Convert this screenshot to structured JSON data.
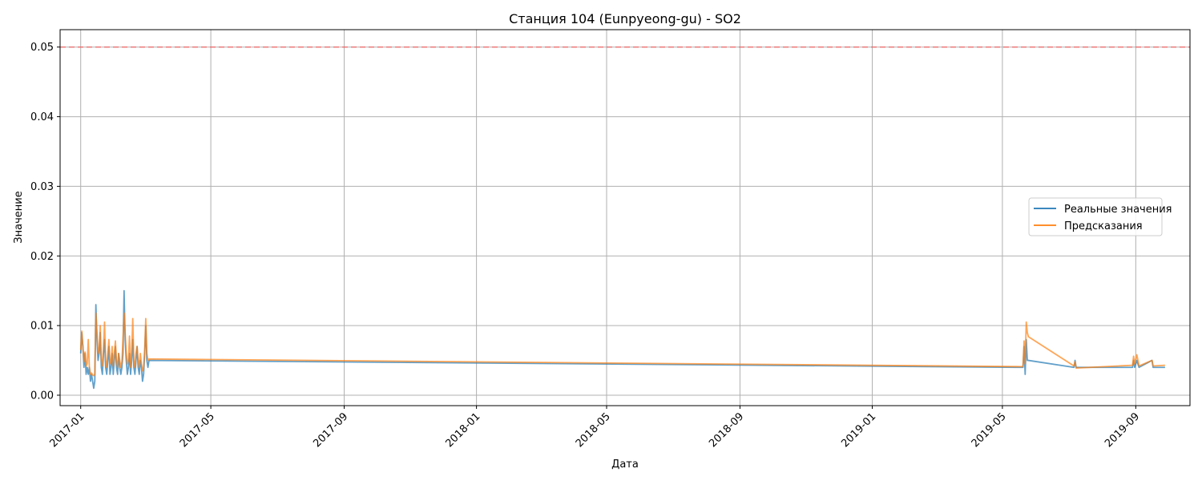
{
  "chart_data": {
    "type": "line",
    "title": "Станция 104 (Eunpyeong-gu) - SO2",
    "xlabel": "Дата",
    "ylabel": "Значение",
    "xlim": [
      "2016-12-13",
      "2019-10-21"
    ],
    "ylim": [
      -0.0015,
      0.0525
    ],
    "x_ticks": [
      "2017-01",
      "2017-05",
      "2017-09",
      "2018-01",
      "2018-05",
      "2018-09",
      "2019-01",
      "2019-05",
      "2019-09"
    ],
    "y_ticks": [
      "0.00",
      "0.01",
      "0.02",
      "0.03",
      "0.04",
      "0.05"
    ],
    "y_tick_values": [
      0.0,
      0.01,
      0.02,
      0.03,
      0.04,
      0.05
    ],
    "grid": true,
    "legend_position": "center-right",
    "threshold": {
      "value": 0.05,
      "color": "#ff4d4d",
      "style": "dashed"
    },
    "series": [
      {
        "name": "Реальные значения",
        "color": "#1f77b4",
        "points": [
          [
            "2017-01-01",
            0.006
          ],
          [
            "2017-01-02",
            0.009
          ],
          [
            "2017-01-03",
            0.007
          ],
          [
            "2017-01-04",
            0.004
          ],
          [
            "2017-01-05",
            0.006
          ],
          [
            "2017-01-06",
            0.003
          ],
          [
            "2017-01-07",
            0.004
          ],
          [
            "2017-01-08",
            0.003
          ],
          [
            "2017-01-09",
            0.004
          ],
          [
            "2017-01-10",
            0.002
          ],
          [
            "2017-01-11",
            0.003
          ],
          [
            "2017-01-12",
            0.002
          ],
          [
            "2017-01-13",
            0.001
          ],
          [
            "2017-01-14",
            0.002
          ],
          [
            "2017-01-15",
            0.013
          ],
          [
            "2017-01-16",
            0.008
          ],
          [
            "2017-01-17",
            0.005
          ],
          [
            "2017-01-18",
            0.006
          ],
          [
            "2017-01-19",
            0.009
          ],
          [
            "2017-01-20",
            0.004
          ],
          [
            "2017-01-21",
            0.003
          ],
          [
            "2017-01-22",
            0.006
          ],
          [
            "2017-01-23",
            0.008
          ],
          [
            "2017-01-24",
            0.004
          ],
          [
            "2017-01-25",
            0.003
          ],
          [
            "2017-01-26",
            0.005
          ],
          [
            "2017-01-27",
            0.007
          ],
          [
            "2017-01-28",
            0.003
          ],
          [
            "2017-01-29",
            0.004
          ],
          [
            "2017-01-30",
            0.006
          ],
          [
            "2017-01-31",
            0.003
          ],
          [
            "2017-02-01",
            0.005
          ],
          [
            "2017-02-02",
            0.007
          ],
          [
            "2017-02-03",
            0.004
          ],
          [
            "2017-02-04",
            0.003
          ],
          [
            "2017-02-05",
            0.006
          ],
          [
            "2017-02-06",
            0.004
          ],
          [
            "2017-02-07",
            0.003
          ],
          [
            "2017-02-08",
            0.004
          ],
          [
            "2017-02-09",
            0.006
          ],
          [
            "2017-02-10",
            0.015
          ],
          [
            "2017-02-11",
            0.008
          ],
          [
            "2017-02-12",
            0.005
          ],
          [
            "2017-02-13",
            0.003
          ],
          [
            "2017-02-14",
            0.004
          ],
          [
            "2017-02-15",
            0.006
          ],
          [
            "2017-02-16",
            0.003
          ],
          [
            "2017-02-17",
            0.005
          ],
          [
            "2017-02-18",
            0.008
          ],
          [
            "2017-02-19",
            0.004
          ],
          [
            "2017-02-20",
            0.003
          ],
          [
            "2017-02-21",
            0.005
          ],
          [
            "2017-02-22",
            0.007
          ],
          [
            "2017-02-23",
            0.004
          ],
          [
            "2017-02-24",
            0.003
          ],
          [
            "2017-02-25",
            0.005
          ],
          [
            "2017-02-26",
            0.004
          ],
          [
            "2017-02-27",
            0.002
          ],
          [
            "2017-02-28",
            0.003
          ],
          [
            "2017-03-01",
            0.006
          ],
          [
            "2017-03-02",
            0.01
          ],
          [
            "2017-03-03",
            0.005
          ],
          [
            "2017-03-04",
            0.004
          ],
          [
            "2017-03-05",
            0.005
          ],
          [
            "2019-05-20",
            0.004
          ],
          [
            "2019-05-21",
            0.007
          ],
          [
            "2019-05-22",
            0.003
          ],
          [
            "2019-05-23",
            0.008
          ],
          [
            "2019-05-24",
            0.005
          ],
          [
            "2019-05-25",
            0.005
          ],
          [
            "2019-07-06",
            0.004
          ],
          [
            "2019-07-07",
            0.005
          ],
          [
            "2019-07-08",
            0.004
          ],
          [
            "2019-08-29",
            0.004
          ],
          [
            "2019-08-30",
            0.005
          ],
          [
            "2019-08-31",
            0.004
          ],
          [
            "2019-09-02",
            0.005
          ],
          [
            "2019-09-04",
            0.004
          ],
          [
            "2019-09-16",
            0.005
          ],
          [
            "2019-09-17",
            0.004
          ],
          [
            "2019-09-28",
            0.004
          ]
        ]
      },
      {
        "name": "Предсказания",
        "color": "#ff7f0e",
        "points": [
          [
            "2017-01-01",
            0.0065
          ],
          [
            "2017-01-02",
            0.0092
          ],
          [
            "2017-01-03",
            0.007
          ],
          [
            "2017-01-04",
            0.0048
          ],
          [
            "2017-01-05",
            0.0062
          ],
          [
            "2017-01-06",
            0.0042
          ],
          [
            "2017-01-07",
            0.0045
          ],
          [
            "2017-01-08",
            0.008
          ],
          [
            "2017-01-09",
            0.004
          ],
          [
            "2017-01-10",
            0.003
          ],
          [
            "2017-01-11",
            0.0032
          ],
          [
            "2017-01-12",
            0.0029
          ],
          [
            "2017-01-13",
            0.0028
          ],
          [
            "2017-01-14",
            0.003
          ],
          [
            "2017-01-15",
            0.0118
          ],
          [
            "2017-01-16",
            0.009
          ],
          [
            "2017-01-17",
            0.006
          ],
          [
            "2017-01-18",
            0.0065
          ],
          [
            "2017-01-19",
            0.01
          ],
          [
            "2017-01-20",
            0.005
          ],
          [
            "2017-01-21",
            0.0042
          ],
          [
            "2017-01-22",
            0.0068
          ],
          [
            "2017-01-23",
            0.0105
          ],
          [
            "2017-01-24",
            0.005
          ],
          [
            "2017-01-25",
            0.004
          ],
          [
            "2017-01-26",
            0.006
          ],
          [
            "2017-01-27",
            0.008
          ],
          [
            "2017-01-28",
            0.0045
          ],
          [
            "2017-01-29",
            0.0048
          ],
          [
            "2017-01-30",
            0.007
          ],
          [
            "2017-01-31",
            0.0042
          ],
          [
            "2017-02-01",
            0.006
          ],
          [
            "2017-02-02",
            0.0078
          ],
          [
            "2017-02-03",
            0.005
          ],
          [
            "2017-02-04",
            0.004
          ],
          [
            "2017-02-05",
            0.006
          ],
          [
            "2017-02-06",
            0.005
          ],
          [
            "2017-02-07",
            0.004
          ],
          [
            "2017-02-08",
            0.0048
          ],
          [
            "2017-02-09",
            0.008
          ],
          [
            "2017-02-10",
            0.0118
          ],
          [
            "2017-02-11",
            0.009
          ],
          [
            "2017-02-12",
            0.006
          ],
          [
            "2017-02-13",
            0.0045
          ],
          [
            "2017-02-14",
            0.005
          ],
          [
            "2017-02-15",
            0.0085
          ],
          [
            "2017-02-16",
            0.004
          ],
          [
            "2017-02-17",
            0.006
          ],
          [
            "2017-02-18",
            0.011
          ],
          [
            "2017-02-19",
            0.005
          ],
          [
            "2017-02-20",
            0.004
          ],
          [
            "2017-02-21",
            0.006
          ],
          [
            "2017-02-22",
            0.007
          ],
          [
            "2017-02-23",
            0.005
          ],
          [
            "2017-02-24",
            0.004
          ],
          [
            "2017-02-25",
            0.006
          ],
          [
            "2017-02-26",
            0.0045
          ],
          [
            "2017-02-27",
            0.0035
          ],
          [
            "2017-02-28",
            0.004
          ],
          [
            "2017-03-01",
            0.0065
          ],
          [
            "2017-03-02",
            0.011
          ],
          [
            "2017-03-03",
            0.006
          ],
          [
            "2017-03-04",
            0.005
          ],
          [
            "2017-03-05",
            0.0052
          ],
          [
            "2019-05-20",
            0.0041
          ],
          [
            "2019-05-21",
            0.0078
          ],
          [
            "2019-05-22",
            0.0045
          ],
          [
            "2019-05-23",
            0.0105
          ],
          [
            "2019-05-24",
            0.009
          ],
          [
            "2019-05-25",
            0.0084
          ],
          [
            "2019-07-06",
            0.0042
          ],
          [
            "2019-07-07",
            0.0048
          ],
          [
            "2019-07-08",
            0.0039
          ],
          [
            "2019-08-29",
            0.0043
          ],
          [
            "2019-08-30",
            0.0056
          ],
          [
            "2019-08-31",
            0.0045
          ],
          [
            "2019-09-02",
            0.0058
          ],
          [
            "2019-09-04",
            0.0042
          ],
          [
            "2019-09-16",
            0.005
          ],
          [
            "2019-09-17",
            0.0042
          ],
          [
            "2019-09-28",
            0.0043
          ]
        ]
      }
    ]
  }
}
